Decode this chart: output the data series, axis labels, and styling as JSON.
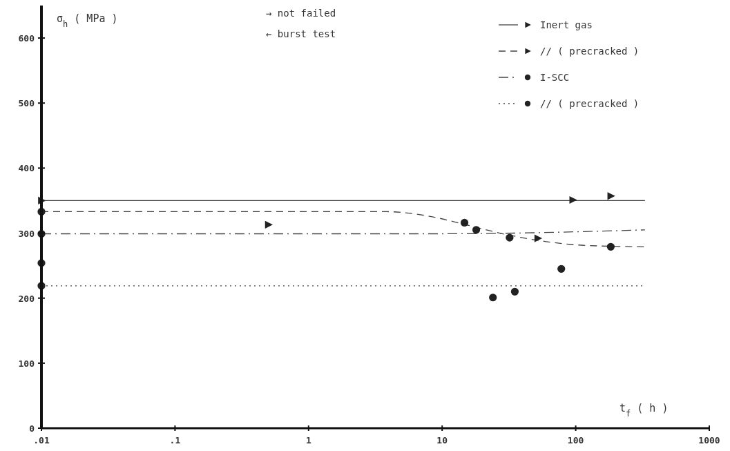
{
  "chart_data": {
    "type": "scatter",
    "xlabel": "t$_{f}$ ( h )",
    "ylabel": "σ$_{h}$ ( MPa )",
    "log": "x",
    "xlim": [
      0.01,
      1000
    ],
    "xticks": [
      {
        "value": 0.01,
        "label": ".01"
      },
      {
        "value": 0.1,
        "label": ".1"
      },
      1,
      10,
      100,
      1000
    ],
    "ylim": [
      0,
      650
    ],
    "yticks": [
      0,
      100,
      200,
      300,
      400,
      500,
      600
    ],
    "grid": false,
    "legend": "top right",
    "annotations": [
      "→ not failed",
      "← burst test"
    ],
    "series": [
      {
        "name": "Inert gas",
        "marker": "triangle",
        "color": "#222222",
        "x": [
          0.01,
          95,
          183
        ],
        "values": [
          350,
          351,
          357
        ]
      },
      {
        "name": "//  ( precracked )",
        "marker": "triangle",
        "color": "#222222",
        "x": [
          0.5,
          52
        ],
        "values": [
          313,
          292
        ]
      },
      {
        "name": "I-SCC",
        "marker": "circle",
        "color": "#222222",
        "x": [
          0.01,
          0.01,
          14.7,
          18,
          32,
          183
        ],
        "values": [
          333,
          299,
          316,
          305,
          293,
          279
        ]
      },
      {
        "name": "//  ( precracked )",
        "marker": "circle",
        "color": "#222222",
        "x": [
          0.01,
          0.01,
          24,
          35,
          78
        ],
        "values": [
          254,
          219,
          201,
          210,
          245
        ]
      },
      {
        "type": "line",
        "line_style": "solid",
        "color": "#444444",
        "x": [
          0.01,
          330
        ],
        "values": [
          350,
          350
        ]
      },
      {
        "type": "line",
        "line_style": "dashed",
        "color": "#444444",
        "x": [
          0.01,
          3.8,
          8,
          15,
          30,
          60,
          120,
          330
        ],
        "values": [
          333,
          333,
          326,
          313,
          298,
          287,
          281,
          279
        ]
      },
      {
        "type": "line",
        "line_style": "dashdot",
        "color": "#444444",
        "x": [
          0.01,
          10,
          330
        ],
        "values": [
          299,
          299,
          305
        ]
      },
      {
        "type": "line",
        "line_style": "dotted",
        "color": "#444444",
        "x": [
          0.01,
          330
        ],
        "values": [
          219,
          219
        ]
      }
    ]
  }
}
